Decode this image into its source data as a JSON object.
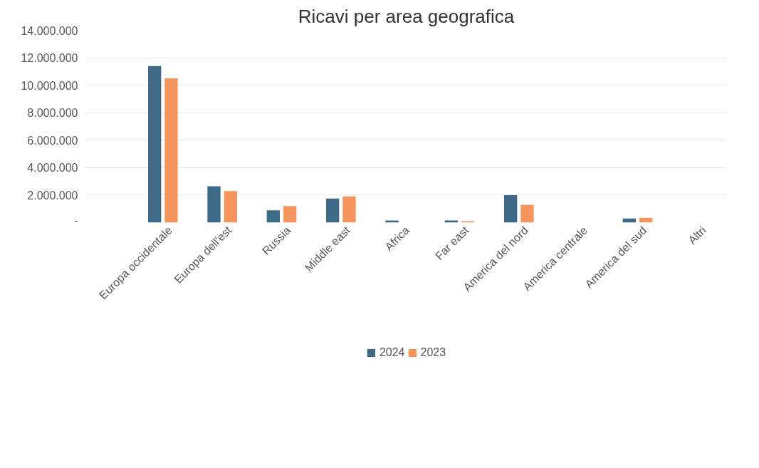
{
  "chart_data": {
    "type": "bar",
    "title": "Ricavi per area geografica",
    "categories": [
      "Europa occidentale",
      "Europa dell'est",
      "Russia",
      "Middle east",
      "Africa",
      "Far east",
      "America del nord",
      "America centrale",
      "America del sud",
      "Altri"
    ],
    "series": [
      {
        "name": "2024",
        "color": "#3e6a87",
        "values": [
          11400000,
          2650000,
          900000,
          1750000,
          150000,
          150000,
          2000000,
          0,
          300000,
          0
        ]
      },
      {
        "name": "2023",
        "color": "#f4955e",
        "values": [
          10500000,
          2300000,
          1200000,
          1900000,
          0,
          100000,
          1300000,
          0,
          350000,
          0
        ]
      }
    ],
    "ylim": [
      0,
      14000000
    ],
    "yticks": [
      {
        "value": 0,
        "label": "-"
      },
      {
        "value": 2000000,
        "label": "2.000.000"
      },
      {
        "value": 4000000,
        "label": "4.000.000"
      },
      {
        "value": 6000000,
        "label": "6.000.000"
      },
      {
        "value": 8000000,
        "label": "8.000.000"
      },
      {
        "value": 10000000,
        "label": "10.000.000"
      },
      {
        "value": 12000000,
        "label": "12.000.000"
      },
      {
        "value": 14000000,
        "label": "14.000.000"
      }
    ],
    "grid": "y",
    "legend": "bottom"
  }
}
